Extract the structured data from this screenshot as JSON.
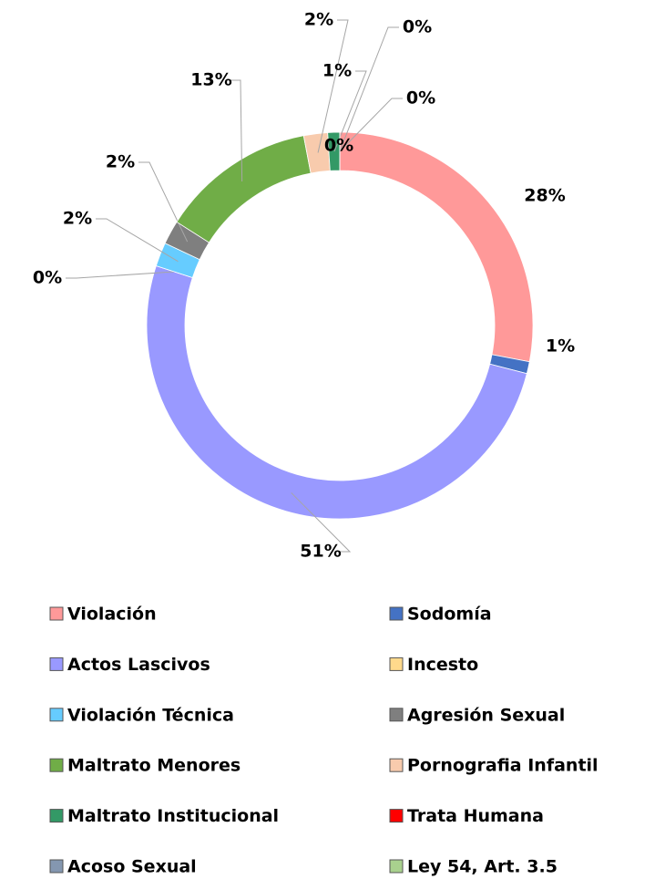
{
  "chart_data": {
    "type": "donut",
    "categories": [
      "Violación",
      "Sodomía",
      "Actos Lascivos",
      "Incesto",
      "Violación Técnica",
      "Agresión Sexual",
      "Maltrato Menores",
      "Pornografia Infantil",
      "Maltrato Institucional",
      "Trata Humana",
      "Acoso Sexual",
      "Ley 54, Art. 3.5"
    ],
    "values": [
      28,
      1,
      51,
      0,
      2,
      2,
      13,
      2,
      1,
      0,
      0,
      0
    ],
    "value_labels": [
      "28%",
      "1%",
      "51%",
      "0%",
      "2%",
      "2%",
      "13%",
      "2%",
      "1%",
      "0%",
      "0%",
      "0%"
    ],
    "colors": [
      "#ff9999",
      "#4472c4",
      "#9999ff",
      "#ffd98c",
      "#66ccff",
      "#7f7f7f",
      "#70ad47",
      "#f8cbad",
      "#339966",
      "#ff0000",
      "#8497b0",
      "#a9d18e"
    ],
    "legend": "bottom"
  }
}
